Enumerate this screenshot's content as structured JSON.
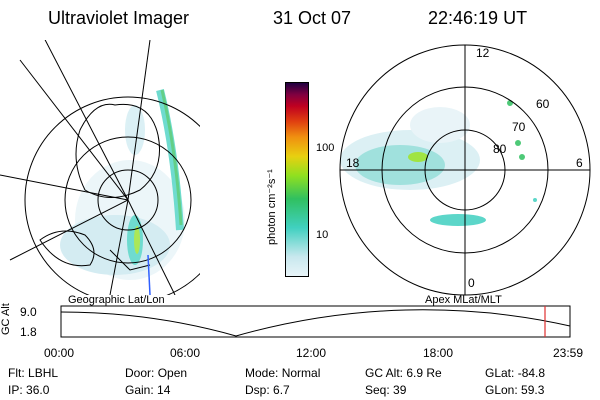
{
  "header": {
    "instrument": "Ultraviolet Imager",
    "date": "31 Oct 07",
    "time": "22:46:19 UT"
  },
  "left_panel": {
    "caption": "Geographic Lat/Lon"
  },
  "right_panel": {
    "caption": "Apex  MLat/MLT",
    "mlt_labels": [
      "12",
      "18",
      "6",
      "0"
    ],
    "mlat_labels": [
      "60",
      "70",
      "80"
    ]
  },
  "colorbar": {
    "unit_label": "photon cm⁻²s⁻¹",
    "ticks": [
      {
        "label": "100",
        "value": 100
      },
      {
        "label": "10",
        "value": 10
      }
    ],
    "scale": "log",
    "colors": [
      "#e8f4f8",
      "#c8e8ee",
      "#40d0c0",
      "#30c060",
      "#90e020",
      "#e8d010",
      "#f09010",
      "#e04010",
      "#c00020",
      "#800040",
      "#200040"
    ]
  },
  "altitude_plot": {
    "ylabel": "GC Alt",
    "yticks": [
      "9.0",
      "1.8"
    ],
    "xticks": [
      "00:00",
      "06:00",
      "12:00",
      "18:00",
      "23:59"
    ],
    "marker_time": "22:46",
    "marker_color": "#e03030"
  },
  "status": {
    "row1": [
      {
        "label": "Flt:",
        "value": "LBHL"
      },
      {
        "label": "Door:",
        "value": "Open"
      },
      {
        "label": "Mode:",
        "value": "Normal"
      },
      {
        "label": "GC Alt:",
        "value": "6.9 Re"
      },
      {
        "label": "GLat:",
        "value": "-84.8"
      }
    ],
    "row2": [
      {
        "label": "IP:",
        "value": "36.0"
      },
      {
        "label": "Gain:",
        "value": "14"
      },
      {
        "label": "Dsp:",
        "value": "6.7"
      },
      {
        "label": "Seq:",
        "value": "39"
      },
      {
        "label": "GLon:",
        "value": "59.3"
      }
    ]
  }
}
